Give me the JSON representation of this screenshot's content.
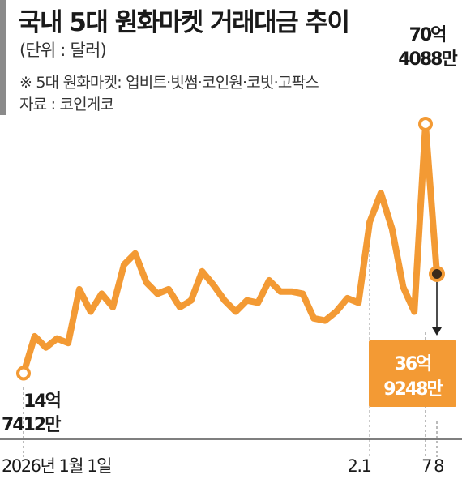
{
  "title": "국내 5대 원화마켓 거래대금 추이",
  "unit": "(단위 : 달러)",
  "note": "※ 5대 원화마켓: 업비트·빗썸·코인원·코빗·고팍스",
  "source": "자료 : 코인게코",
  "colors": {
    "line": "#F39A34",
    "callout_fill": "#F39A34",
    "marker_dark": "#3a2a1a",
    "text": "#1a1a1a"
  },
  "chart_data": {
    "type": "line",
    "title": "국내 5대 원화마켓 거래대금 추이",
    "xlabel": "",
    "ylabel": "",
    "x_tick_labels": [
      "2026년 1월 1일",
      "2.1",
      "7",
      "8"
    ],
    "y_unit": "달러",
    "ylim": [
      0,
      8000000000
    ],
    "series": [
      {
        "values": [
          1474120000,
          2300000000,
          2050000000,
          2250000000,
          2150000000,
          3350000000,
          2850000000,
          3250000000,
          2950000000,
          3900000000,
          4150000000,
          3500000000,
          3250000000,
          3350000000,
          2950000000,
          3100000000,
          3750000000,
          3450000000,
          3100000000,
          2850000000,
          3100000000,
          3050000000,
          3550000000,
          3300000000,
          3300000000,
          3250000000,
          2700000000,
          2650000000,
          2850000000,
          3150000000,
          3050000000,
          4850000000,
          5500000000,
          4700000000,
          3400000000,
          2850000000,
          7040880000,
          3692480000
        ]
      }
    ],
    "annotations": [
      {
        "id": "start",
        "line1": "14억",
        "line2": "7412만",
        "value": 1474120000
      },
      {
        "id": "peak",
        "line1": "70억",
        "line2": "4088만",
        "value": 7040880000
      },
      {
        "id": "end",
        "line1": "36억",
        "line2": "9248만",
        "value": 3692480000
      }
    ]
  }
}
